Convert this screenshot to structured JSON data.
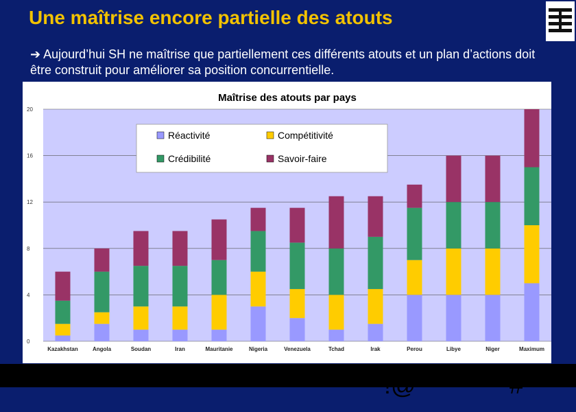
{
  "slide": {
    "title": "Une maîtrise encore partielle des atouts",
    "arrow_icon": "arrow-right-icon",
    "arrow_glyph": "➔",
    "subtitle": "Aujourd’hui SH ne maîtrise que partiellement ces différents atouts et un plan d’actions doit être construit pour améliorer sa position concurrentielle.",
    "footer_left": "!@",
    "footer_right": "#",
    "background_color": "#0a1e6e",
    "title_color": "#f2c200"
  },
  "chart_data": {
    "type": "bar",
    "stacked": true,
    "title": "Maîtrise des atouts par pays",
    "xlabel": "",
    "ylabel": "",
    "ylim": [
      0,
      20
    ],
    "yticks": [
      "0",
      "4",
      "8",
      "12",
      "16",
      "20"
    ],
    "grid": true,
    "legend_position": "top-left",
    "categories": [
      "Kazakhstan",
      "Angola",
      "Soudan",
      "Iran",
      "Mauritanie",
      "Nigeria",
      "Venezuela",
      "Tchad",
      "Irak",
      "Perou",
      "Libye",
      "Niger",
      "Maximum"
    ],
    "series": [
      {
        "name": "Réactivité",
        "color": "#9999ff",
        "values": [
          0.5,
          1.5,
          1,
          1,
          1,
          3,
          2,
          1,
          1.5,
          4,
          4,
          4,
          5
        ]
      },
      {
        "name": "Compétitivité",
        "color": "#ffcc00",
        "values": [
          1,
          1,
          2,
          2,
          3,
          3,
          2.5,
          3,
          3,
          3,
          4,
          4,
          5
        ]
      },
      {
        "name": "Crédibilité",
        "color": "#339966",
        "values": [
          2,
          3.5,
          3.5,
          3.5,
          3,
          3.5,
          4,
          4,
          4.5,
          4.5,
          4,
          4,
          5
        ]
      },
      {
        "name": "Savoir-faire",
        "color": "#993366",
        "values": [
          2.5,
          2,
          3,
          3,
          3.5,
          2,
          3,
          4.5,
          3.5,
          2,
          4,
          4,
          5
        ]
      }
    ]
  }
}
